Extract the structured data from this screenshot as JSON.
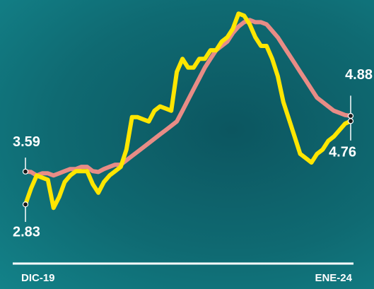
{
  "chart_data": {
    "type": "line",
    "x_start_label": "DIC-19",
    "x_end_label": "ENE-24",
    "ylim": [
      2.0,
      7.4
    ],
    "grid": false,
    "legend": "none",
    "colors": {
      "background": "#0f6a72",
      "series_a": "#ffe600",
      "series_b": "#e88c86",
      "axis": "#ffffff",
      "label": "#ffffff"
    },
    "series": [
      {
        "values": [
          2.83,
          3.2,
          3.5,
          3.45,
          3.4,
          2.75,
          3.0,
          3.35,
          3.5,
          3.6,
          3.6,
          3.6,
          3.3,
          3.1,
          3.35,
          3.5,
          3.6,
          3.7,
          4.1,
          4.85,
          4.85,
          4.8,
          4.75,
          5.0,
          5.1,
          5.05,
          5.0,
          5.9,
          6.2,
          6.0,
          6.0,
          6.2,
          6.2,
          6.4,
          6.4,
          6.6,
          6.7,
          6.9,
          7.25,
          7.2,
          7.0,
          6.7,
          6.5,
          6.5,
          6.2,
          5.8,
          5.2,
          4.8,
          4.4,
          4.0,
          3.9,
          3.8,
          4.0,
          4.1,
          4.3,
          4.4,
          4.55,
          4.7,
          4.76
        ],
        "start_label": "2.83",
        "end_label": "4.76"
      },
      {
        "values": [
          3.59,
          3.58,
          3.5,
          3.55,
          3.55,
          3.5,
          3.55,
          3.6,
          3.65,
          3.65,
          3.7,
          3.7,
          3.6,
          3.58,
          3.65,
          3.7,
          3.75,
          3.75,
          3.85,
          3.95,
          4.05,
          4.15,
          4.25,
          4.35,
          4.45,
          4.55,
          4.65,
          4.75,
          5.0,
          5.25,
          5.5,
          5.75,
          6.0,
          6.2,
          6.4,
          6.5,
          6.6,
          6.8,
          6.95,
          7.05,
          7.1,
          7.05,
          7.05,
          7.0,
          6.85,
          6.7,
          6.5,
          6.3,
          6.1,
          5.9,
          5.7,
          5.5,
          5.3,
          5.2,
          5.1,
          5.0,
          4.95,
          4.9,
          4.88
        ],
        "start_label": "3.59",
        "end_label": "4.88"
      }
    ]
  }
}
